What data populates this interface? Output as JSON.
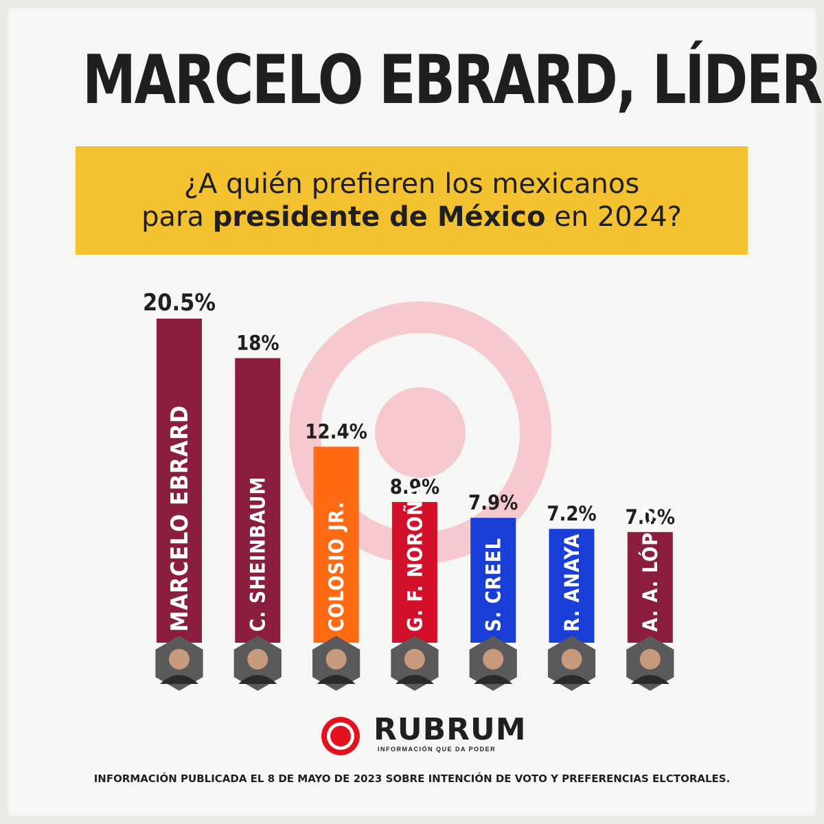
{
  "headline": "MARCELO EBRARD, LÍDER",
  "subtitle": {
    "line1": "¿A quién prefieren los mexicanos",
    "line2_pre": "para ",
    "line2_bold": "presidente de México",
    "line2_post": " en 2024?"
  },
  "colors": {
    "maroon": "#8b1e3f",
    "orange": "#ff6a13",
    "red": "#d3102a",
    "blue": "#1a3fd6",
    "accent_yellow": "#f4c230",
    "target_pink": "#f5c9cd"
  },
  "chart_data": {
    "type": "bar",
    "title": "",
    "xlabel": "",
    "ylabel": "",
    "ylim": [
      0,
      20.5
    ],
    "bars": [
      {
        "name": "MARCELO EBRARD",
        "value": 20.5,
        "label": "20.5%",
        "color": "#8b1e3f",
        "photo_icon": "marcelo-ebrard-portrait"
      },
      {
        "name": "C. SHEINBAUM",
        "value": 18,
        "label": "18%",
        "color": "#8b1e3f",
        "photo_icon": "claudia-sheinbaum-portrait"
      },
      {
        "name": "COLOSIO JR.",
        "value": 12.4,
        "label": "12.4%",
        "color": "#ff6a13",
        "photo_icon": "colosio-portrait"
      },
      {
        "name": "G. F. NOROÑA",
        "value": 8.9,
        "label": "8.9%",
        "color": "#d3102a",
        "photo_icon": "fernandez-norona-portrait"
      },
      {
        "name": "S. CREEL",
        "value": 7.9,
        "label": "7.9%",
        "color": "#1a3fd6",
        "photo_icon": "santiago-creel-portrait"
      },
      {
        "name": "R. ANAYA",
        "value": 7.2,
        "label": "7.2%",
        "color": "#1a3fd6",
        "photo_icon": "ricardo-anaya-portrait"
      },
      {
        "name": "A. A. LÓPEZ",
        "value": 7.0,
        "label": "7.0%",
        "color": "#8b1e3f",
        "photo_icon": "adan-augusto-portrait"
      }
    ]
  },
  "logo": {
    "word": "RUBRUM",
    "tagline": "INFORMACIÓN QUE DA PODER",
    "icon": "target-ring-logo-icon"
  },
  "footnote": "INFORMACIÓN PUBLICADA EL 8 DE MAYO DE 2023 SOBRE INTENCIÓN DE VOTO Y PREFERENCIAS ELCTORALES."
}
